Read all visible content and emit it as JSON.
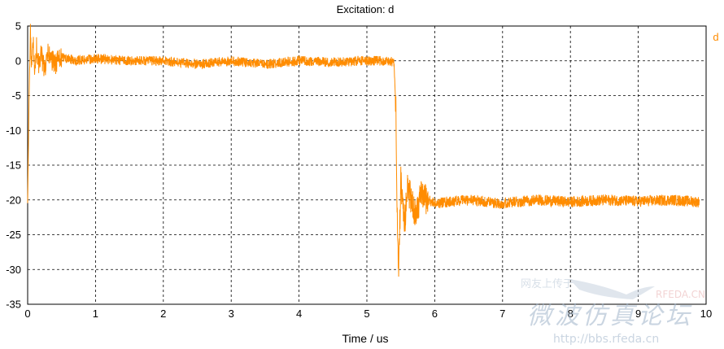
{
  "chart_data": {
    "type": "line",
    "title": "Excitation: d",
    "xlabel": "Time / us",
    "ylabel": "",
    "xlim": [
      0,
      10
    ],
    "ylim": [
      -35,
      5
    ],
    "xticks": [
      0,
      1,
      2,
      3,
      4,
      5,
      6,
      7,
      8,
      9,
      10
    ],
    "yticks": [
      5,
      0,
      -5,
      -10,
      -15,
      -20,
      -25,
      -30,
      -35
    ],
    "grid": true,
    "legend_position": "top-right",
    "series": [
      {
        "name": "d",
        "color": "#FF8C00",
        "x": [
          0.0,
          0.02,
          0.04,
          0.06,
          0.08,
          0.1,
          0.13,
          0.16,
          0.2,
          0.25,
          0.3,
          0.4,
          0.5,
          0.7,
          1.0,
          1.5,
          2.0,
          2.5,
          3.0,
          3.5,
          4.0,
          4.5,
          5.0,
          5.3,
          5.4,
          5.43,
          5.45,
          5.47,
          5.5,
          5.55,
          5.6,
          5.7,
          5.8,
          6.0,
          6.5,
          7.0,
          7.5,
          8.0,
          8.5,
          9.0,
          9.5,
          9.9
        ],
        "y": [
          -20.5,
          -6.0,
          4.5,
          -2.0,
          3.8,
          -1.5,
          2.0,
          -0.5,
          1.0,
          -1.5,
          1.0,
          -0.5,
          0.5,
          0.0,
          0.3,
          0.0,
          0.0,
          -0.5,
          0.0,
          -0.5,
          0.0,
          -0.2,
          0.0,
          0.0,
          -0.2,
          -8.0,
          -25.0,
          -30.5,
          -17.0,
          -24.0,
          -18.0,
          -22.0,
          -19.5,
          -20.5,
          -20.0,
          -20.5,
          -20.0,
          -20.3,
          -20.0,
          -20.2,
          -20.0,
          -20.3
        ]
      }
    ]
  },
  "watermark": {
    "top_text": "网友上传于",
    "brand": "RFEDA.CN",
    "cn_text": "微波仿真论坛",
    "url": "http://bbs.rfeda.cn"
  }
}
